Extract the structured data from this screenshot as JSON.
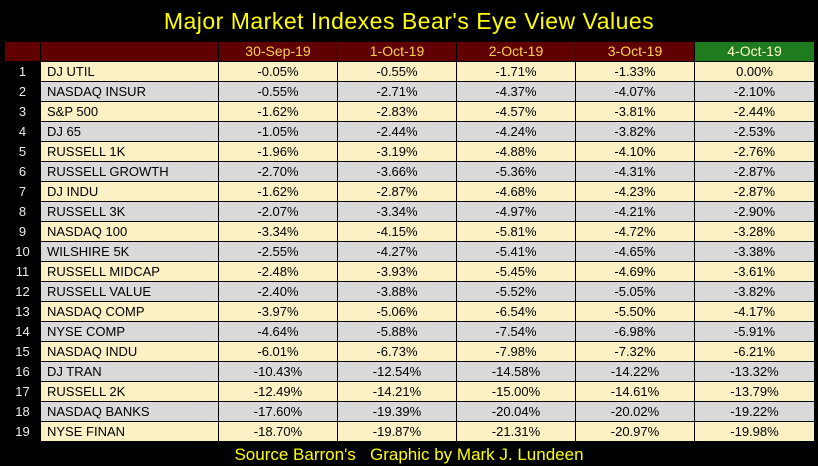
{
  "chart_data": {
    "type": "table",
    "title": "Major Market Indexes Bear's Eye View Values",
    "columns": [
      "30-Sep-19",
      "1-Oct-19",
      "2-Oct-19",
      "3-Oct-19",
      "4-Oct-19"
    ],
    "rows": [
      {
        "num": "1",
        "name": "DJ UTIL",
        "values": [
          "-0.05%",
          "-0.55%",
          "-1.71%",
          "-1.33%",
          "0.00%"
        ]
      },
      {
        "num": "2",
        "name": "NASDAQ INSUR",
        "values": [
          "-0.55%",
          "-2.71%",
          "-4.37%",
          "-4.07%",
          "-2.10%"
        ]
      },
      {
        "num": "3",
        "name": "S&P 500",
        "values": [
          "-1.62%",
          "-2.83%",
          "-4.57%",
          "-3.81%",
          "-2.44%"
        ]
      },
      {
        "num": "4",
        "name": "DJ 65",
        "values": [
          "-1.05%",
          "-2.44%",
          "-4.24%",
          "-3.82%",
          "-2.53%"
        ]
      },
      {
        "num": "5",
        "name": "RUSSELL 1K",
        "values": [
          "-1.96%",
          "-3.19%",
          "-4.88%",
          "-4.10%",
          "-2.76%"
        ]
      },
      {
        "num": "6",
        "name": "RUSSELL GROWTH",
        "values": [
          "-2.70%",
          "-3.66%",
          "-5.36%",
          "-4.31%",
          "-2.87%"
        ]
      },
      {
        "num": "7",
        "name": "DJ INDU",
        "values": [
          "-1.62%",
          "-2.87%",
          "-4.68%",
          "-4.23%",
          "-2.87%"
        ]
      },
      {
        "num": "8",
        "name": "RUSSELL 3K",
        "values": [
          "-2.07%",
          "-3.34%",
          "-4.97%",
          "-4.21%",
          "-2.90%"
        ]
      },
      {
        "num": "9",
        "name": "NASDAQ 100",
        "values": [
          "-3.34%",
          "-4.15%",
          "-5.81%",
          "-4.72%",
          "-3.28%"
        ]
      },
      {
        "num": "10",
        "name": "WILSHIRE 5K",
        "values": [
          "-2.55%",
          "-4.27%",
          "-5.41%",
          "-4.65%",
          "-3.38%"
        ]
      },
      {
        "num": "11",
        "name": "RUSSELL MIDCAP",
        "values": [
          "-2.48%",
          "-3.93%",
          "-5.45%",
          "-4.69%",
          "-3.61%"
        ]
      },
      {
        "num": "12",
        "name": "RUSSELL VALUE",
        "values": [
          "-2.40%",
          "-3.88%",
          "-5.52%",
          "-5.05%",
          "-3.82%"
        ]
      },
      {
        "num": "13",
        "name": "NASDAQ COMP",
        "values": [
          "-3.97%",
          "-5.06%",
          "-6.54%",
          "-5.50%",
          "-4.17%"
        ]
      },
      {
        "num": "14",
        "name": "NYSE COMP",
        "values": [
          "-4.64%",
          "-5.88%",
          "-7.54%",
          "-6.98%",
          "-5.91%"
        ]
      },
      {
        "num": "15",
        "name": "NASDAQ INDU",
        "values": [
          "-6.01%",
          "-6.73%",
          "-7.98%",
          "-7.32%",
          "-6.21%"
        ]
      },
      {
        "num": "16",
        "name": "DJ TRAN",
        "values": [
          "-10.43%",
          "-12.54%",
          "-14.58%",
          "-14.22%",
          "-13.32%"
        ]
      },
      {
        "num": "17",
        "name": "RUSSELL 2K",
        "values": [
          "-12.49%",
          "-14.21%",
          "-15.00%",
          "-14.61%",
          "-13.79%"
        ]
      },
      {
        "num": "18",
        "name": "NASDAQ BANKS",
        "values": [
          "-17.60%",
          "-19.39%",
          "-20.04%",
          "-20.02%",
          "-19.22%"
        ]
      },
      {
        "num": "19",
        "name": "NYSE FINAN",
        "values": [
          "-18.70%",
          "-19.87%",
          "-21.31%",
          "-20.97%",
          "-19.98%"
        ]
      }
    ],
    "highlight_cell": {
      "row_index": 0,
      "col_index": 4
    }
  },
  "footer": {
    "credit": "Source Barron's   Graphic by Mark J. Lundeen"
  },
  "colors": {
    "page_bg": "#000000",
    "title_text": "#FFFF00",
    "header_bg": "#600000",
    "header_text": "#FFD34F",
    "current_header_bg": "#1E7B1E",
    "current_header_text": "#FFFFC8",
    "row_cream": "#FBF1C4",
    "row_gray": "#D9D9D9",
    "highlight_pink": "#F3B4C0",
    "row_number_text": "#EDEDED",
    "footer_text": "#FFFF00",
    "grid_line": "#000000"
  }
}
